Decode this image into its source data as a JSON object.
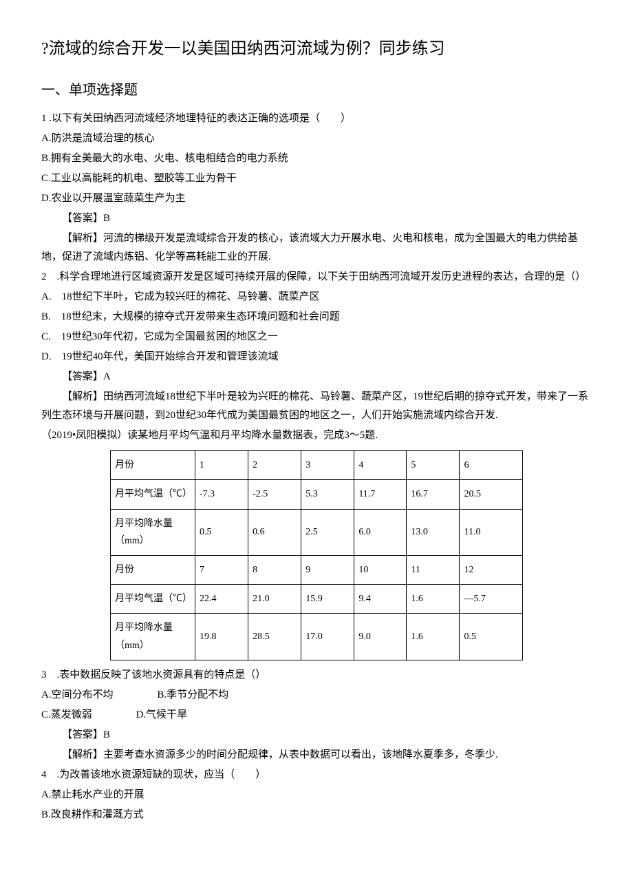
{
  "title": "?流域的综合开发一以美国田纳西河流域为例？同步练习",
  "section1": "一、单项选择题",
  "q1": {
    "stem": "1 .以下有关田纳西河流域经济地理特征的表达正确的选项是（　　）",
    "A": "A.防洪是流域治理的核心",
    "B": "B.拥有全美最大的水电、火电、核电相结合的电力系统",
    "C": "C.工业以高能耗的机电、塑胶等工业为骨干",
    "D": "D.农业以开展温室蔬菜生产为主",
    "ans": "【答案】B",
    "exp": "【解析】河流的梯级开发是流域综合开发的核心，该流域大力开展水电、火电和核电，成为全国最大的电力供给基地，促进了流域内炼铝、化学等高耗能工业的开展."
  },
  "q2": {
    "stem": "2　.科学合理地进行区域资源开发是区域可持续开展的保障，以下关于田纳西河流域开发历史进程的表达，合理的是（）",
    "A": "A.　18世纪下半叶，它成为较兴旺的棉花、马铃薯、蔬菜产区",
    "B": "B.　18世纪末，大规模的掠夺式开发带来生态环境问题和社会问题",
    "C": "C.　19世纪30年代初，它成为全国最贫困的地区之一",
    "D": "D.　19世纪40年代，美国开始综合开发和管理该流域",
    "ans": "【答案】A",
    "exp": "【解析】田纳西河流域18世纪下半叶是较为兴旺的棉花、马铃薯、蔬菜产区，19世纪后期的掠夺式开发，带来了一系列生态环境与开展问题，到20世纪30年代成为美国最贫困的地区之一，人们开始实施流域内综合开发."
  },
  "intro3": "（2019•凤阳模拟）读某地月平均气温和月平均降水量数据表，完成3～5题.",
  "table": {
    "rows": [
      [
        "月份",
        "1",
        "2",
        "3",
        "4",
        "5",
        "6"
      ],
      [
        "月平均气温（℃）",
        "-7.3",
        "-2.5",
        "5.3",
        "11.7",
        "16.7",
        "20.5"
      ],
      [
        "月平均降水量（mm）",
        "0.5",
        "0.6",
        "2.5",
        "6.0",
        "13.0",
        "11.0"
      ],
      [
        "月份",
        "7",
        "8",
        "9",
        "10",
        "11",
        "12"
      ],
      [
        "月平均气温（℃）",
        "22.4",
        "21.0",
        "15.9",
        "9.4",
        "1.6",
        "—5.7"
      ],
      [
        "月平均降水量（mm）",
        "19.8",
        "28.5",
        "17.0",
        "9.0",
        "1.6",
        "0.5"
      ]
    ]
  },
  "q3": {
    "stem": "3　.表中数据反映了该地水资源具有的特点是（）",
    "A": "A.空间分布不均",
    "B": "B.季节分配不均",
    "C": "C.蒸发微弱",
    "D": "D.气候干旱",
    "ans": "【答案】B",
    "exp": "【解析】主要考查水资源多少的时间分配规律，从表中数据可以看出，该地降水夏季多，冬季少."
  },
  "q4": {
    "stem": "4　.为改善该地水资源短缺的现状，应当（　　）",
    "A": "A.禁止耗水产业的开展",
    "B": "B.改良耕作和灌溉方式"
  }
}
